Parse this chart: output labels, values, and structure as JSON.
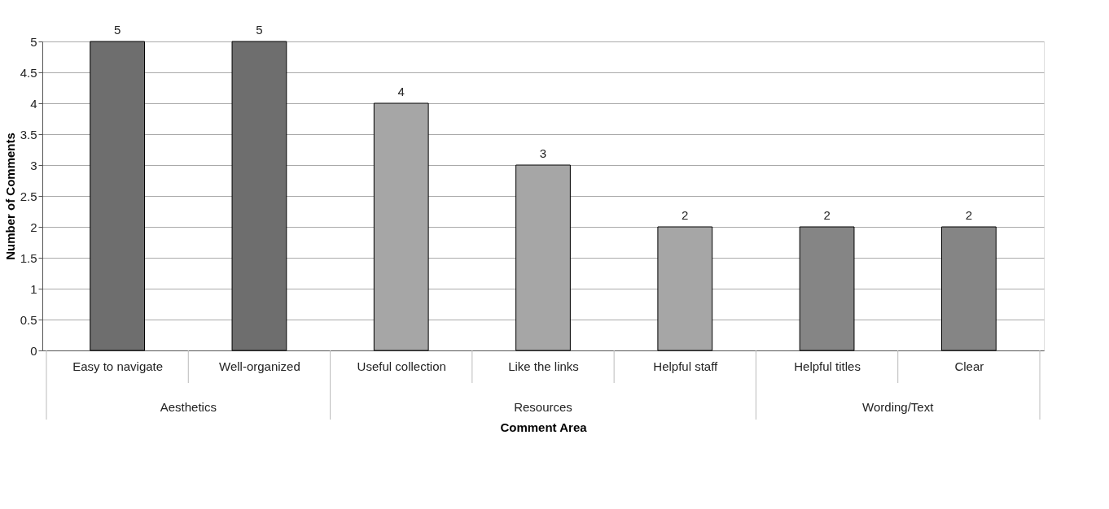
{
  "chart_data": {
    "type": "bar",
    "xlabel": "Comment Area",
    "ylabel": "Number of Comments",
    "categories": [
      "Easy to navigate",
      "Well-organized",
      "Useful collection",
      "Like the links",
      "Helpful staff",
      "Helpful titles",
      "Clear"
    ],
    "values": [
      5,
      5,
      4,
      3,
      2,
      2,
      2
    ],
    "colors": [
      "#6e6e6e",
      "#6e6e6e",
      "#a6a6a6",
      "#a6a6a6",
      "#a6a6a6",
      "#858585",
      "#858585"
    ],
    "ylim": [
      0,
      5
    ],
    "yticks": [
      0,
      0.5,
      1,
      1.5,
      2,
      2.5,
      3,
      3.5,
      4,
      4.5,
      5
    ],
    "grid": "y",
    "data_labels": true,
    "annotations": [
      "Aesthetics",
      "Resources",
      "Wording/Text"
    ]
  }
}
